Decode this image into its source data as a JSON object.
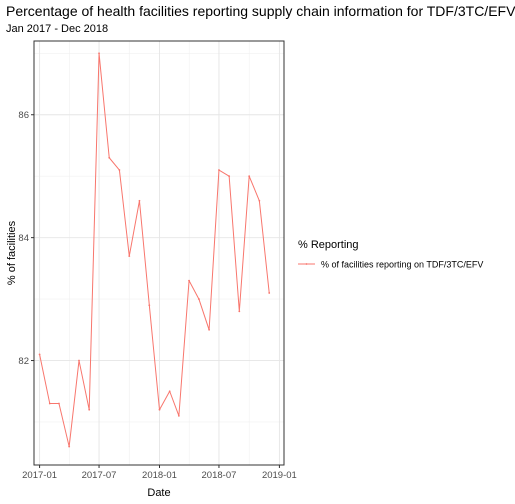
{
  "chart_data": {
    "type": "line",
    "title": "Percentage of health facilities reporting supply chain information for TDF/3TC/EFV",
    "subtitle": "Jan 2017 - Dec 2018",
    "xlabel": "Date",
    "ylabel": "% of facilities",
    "x_tick_labels": [
      "2017-01",
      "2017-07",
      "2018-01",
      "2018-07",
      "2019-01"
    ],
    "y_tick_labels": [
      "82",
      "84",
      "86"
    ],
    "y_ticks": [
      82,
      84,
      86
    ],
    "ylim": [
      80.3,
      87.2
    ],
    "xlim": [
      "2016-12-15",
      "2019-01-15"
    ],
    "grid": true,
    "legend": {
      "title": "% Reporting",
      "position": "right",
      "entries": [
        "% of facilities reporting on TDF/3TC/EFV"
      ]
    },
    "series": [
      {
        "name": "% of facilities reporting on TDF/3TC/EFV",
        "color": "#F8766D",
        "x": [
          "2017-01-01",
          "2017-02-01",
          "2017-03-01",
          "2017-04-01",
          "2017-05-01",
          "2017-06-01",
          "2017-07-01",
          "2017-08-01",
          "2017-09-01",
          "2017-10-01",
          "2017-11-01",
          "2017-12-01",
          "2018-01-01",
          "2018-02-01",
          "2018-03-01",
          "2018-04-01",
          "2018-05-01",
          "2018-06-01",
          "2018-07-01",
          "2018-08-01",
          "2018-09-01",
          "2018-10-01",
          "2018-11-01",
          "2018-12-01"
        ],
        "values": [
          82.1,
          81.3,
          81.3,
          80.6,
          82.0,
          81.2,
          87.0,
          85.3,
          85.1,
          83.7,
          84.6,
          82.9,
          81.2,
          81.5,
          81.1,
          83.3,
          83.0,
          82.5,
          85.1,
          85.0,
          82.8,
          85.0,
          84.6,
          83.1
        ]
      }
    ]
  }
}
